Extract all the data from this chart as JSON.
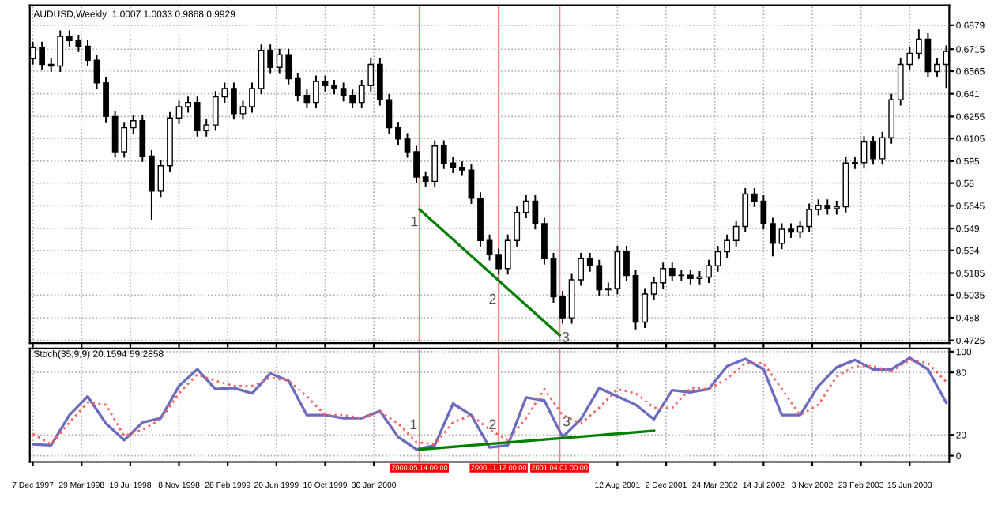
{
  "chart_data": [
    {
      "type": "candlestick",
      "title": "AUDUSD,Weekly  1.0007 1.0033 0.9868 0.9929",
      "color": "#000000",
      "x": [
        "1997-12-07",
        "1997-12-28",
        "1998-01-18",
        "1998-02-08",
        "1998-03-01",
        "1998-03-22",
        "1998-04-12",
        "1998-05-03",
        "1998-05-24",
        "1998-06-14",
        "1998-07-05",
        "1998-07-26",
        "1998-08-16",
        "1998-09-06",
        "1998-09-27",
        "1998-10-18",
        "1998-11-08",
        "1998-11-29",
        "1998-12-20",
        "1999-01-10",
        "1999-01-31",
        "1999-02-21",
        "1999-03-14",
        "1999-04-04",
        "1999-04-25",
        "1999-05-16",
        "1999-06-06",
        "1999-06-27",
        "1999-07-18",
        "1999-08-08",
        "1999-08-29",
        "1999-09-19",
        "1999-10-10",
        "1999-10-31",
        "1999-11-21",
        "1999-12-12",
        "2000-01-02",
        "2000-01-23",
        "2000-02-13",
        "2000-03-05",
        "2000-03-26",
        "2000-04-16",
        "2000-05-07",
        "2000-05-28",
        "2000-06-18",
        "2000-07-09",
        "2000-07-30",
        "2000-08-20",
        "2000-09-10",
        "2000-10-01",
        "2000-10-22",
        "2000-11-12",
        "2000-12-03",
        "2000-12-24",
        "2001-01-14",
        "2001-02-04",
        "2001-02-25",
        "2001-03-18",
        "2001-04-08",
        "2001-04-29",
        "2001-05-20",
        "2001-06-10",
        "2001-07-01",
        "2001-07-22",
        "2001-08-12",
        "2001-09-02",
        "2001-09-23",
        "2001-10-14",
        "2001-11-04",
        "2001-11-25",
        "2001-12-16",
        "2002-01-06",
        "2002-01-27",
        "2002-02-17",
        "2002-03-10",
        "2002-03-31",
        "2002-04-21",
        "2002-05-12",
        "2002-06-02",
        "2002-06-23",
        "2002-07-14",
        "2002-08-04",
        "2002-08-25",
        "2002-09-15",
        "2002-10-06",
        "2002-10-27",
        "2002-11-17",
        "2002-12-08",
        "2002-12-29",
        "2003-01-19",
        "2003-02-09",
        "2003-03-02",
        "2003-03-23",
        "2003-04-13",
        "2003-05-04",
        "2003-05-25",
        "2003-06-15",
        "2003-07-06",
        "2003-07-27",
        "2003-08-17",
        "2003-09-07"
      ],
      "ohlc": [
        [
          0.665,
          0.6766,
          0.661,
          0.6726
        ],
        [
          0.6726,
          0.6766,
          0.6571,
          0.6611
        ],
        [
          0.6611,
          0.6651,
          0.656,
          0.66
        ],
        [
          0.66,
          0.6843,
          0.656,
          0.6803
        ],
        [
          0.6803,
          0.6843,
          0.6734,
          0.6774
        ],
        [
          0.6774,
          0.6814,
          0.6696,
          0.6736
        ],
        [
          0.6736,
          0.6776,
          0.6599,
          0.6639
        ],
        [
          0.6639,
          0.6679,
          0.6445,
          0.6485
        ],
        [
          0.6485,
          0.6525,
          0.6215,
          0.6255
        ],
        [
          0.6255,
          0.6295,
          0.5974,
          0.6014
        ],
        [
          0.6014,
          0.6218,
          0.5974,
          0.6178
        ],
        [
          0.6178,
          0.6266,
          0.6138,
          0.6226
        ],
        [
          0.6226,
          0.6266,
          0.5945,
          0.5985
        ],
        [
          0.5985,
          0.6025,
          0.555,
          0.5745
        ],
        [
          0.5745,
          0.5958,
          0.5705,
          0.5918
        ],
        [
          0.5918,
          0.6285,
          0.5878,
          0.6245
        ],
        [
          0.6245,
          0.6362,
          0.6205,
          0.6322
        ],
        [
          0.6322,
          0.6391,
          0.6282,
          0.6351
        ],
        [
          0.6351,
          0.6391,
          0.6118,
          0.6158
        ],
        [
          0.6158,
          0.6237,
          0.6118,
          0.6197
        ],
        [
          0.6197,
          0.6429,
          0.6157,
          0.6389
        ],
        [
          0.6389,
          0.6487,
          0.6349,
          0.6447
        ],
        [
          0.6447,
          0.6487,
          0.6234,
          0.6274
        ],
        [
          0.6274,
          0.6362,
          0.6234,
          0.6322
        ],
        [
          0.6322,
          0.6487,
          0.6282,
          0.6447
        ],
        [
          0.6447,
          0.6747,
          0.6407,
          0.6707
        ],
        [
          0.6707,
          0.6747,
          0.6551,
          0.6591
        ],
        [
          0.6591,
          0.6718,
          0.6551,
          0.6678
        ],
        [
          0.6678,
          0.6718,
          0.6474,
          0.6514
        ],
        [
          0.6514,
          0.6554,
          0.6359,
          0.6399
        ],
        [
          0.6399,
          0.6439,
          0.6311,
          0.6351
        ],
        [
          0.6351,
          0.6535,
          0.6311,
          0.6495
        ],
        [
          0.6495,
          0.6535,
          0.6426,
          0.6466
        ],
        [
          0.6466,
          0.6506,
          0.6407,
          0.6447
        ],
        [
          0.6447,
          0.6487,
          0.6359,
          0.6399
        ],
        [
          0.6399,
          0.6439,
          0.6311,
          0.6351
        ],
        [
          0.6351,
          0.6506,
          0.6311,
          0.6466
        ],
        [
          0.6466,
          0.6651,
          0.6426,
          0.6611
        ],
        [
          0.6611,
          0.6651,
          0.633,
          0.637
        ],
        [
          0.637,
          0.641,
          0.6138,
          0.6178
        ],
        [
          0.6178,
          0.6218,
          0.6061,
          0.6101
        ],
        [
          0.6101,
          0.6141,
          0.5974,
          0.6014
        ],
        [
          0.6014,
          0.6054,
          0.5801,
          0.5841
        ],
        [
          0.5841,
          0.5881,
          0.5772,
          0.5812
        ],
        [
          0.5812,
          0.6093,
          0.5772,
          0.6053
        ],
        [
          0.6053,
          0.6093,
          0.5897,
          0.5937
        ],
        [
          0.5937,
          0.5977,
          0.5868,
          0.5908
        ],
        [
          0.5908,
          0.5948,
          0.5849,
          0.5889
        ],
        [
          0.5889,
          0.5929,
          0.5657,
          0.5697
        ],
        [
          0.5697,
          0.5737,
          0.5368,
          0.5408
        ],
        [
          0.5408,
          0.5448,
          0.5272,
          0.5312
        ],
        [
          0.5312,
          0.5352,
          0.5176,
          0.5216
        ],
        [
          0.5216,
          0.5448,
          0.5176,
          0.5408
        ],
        [
          0.5408,
          0.564,
          0.5368,
          0.56
        ],
        [
          0.56,
          0.5717,
          0.556,
          0.5677
        ],
        [
          0.5677,
          0.5717,
          0.5483,
          0.5523
        ],
        [
          0.5523,
          0.5563,
          0.5243,
          0.5283
        ],
        [
          0.5283,
          0.5323,
          0.4983,
          0.5023
        ],
        [
          0.5023,
          0.5063,
          0.4839,
          0.4879
        ],
        [
          0.4879,
          0.5179,
          0.4839,
          0.5139
        ],
        [
          0.5139,
          0.5323,
          0.5099,
          0.5283
        ],
        [
          0.5283,
          0.5323,
          0.5195,
          0.5235
        ],
        [
          0.5235,
          0.5275,
          0.5031,
          0.5071
        ],
        [
          0.5071,
          0.512,
          0.5031,
          0.508
        ],
        [
          0.508,
          0.5371,
          0.504,
          0.5331
        ],
        [
          0.5331,
          0.5371,
          0.5128,
          0.5168
        ],
        [
          0.5168,
          0.5208,
          0.48,
          0.485
        ],
        [
          0.485,
          0.5082,
          0.481,
          0.5042
        ],
        [
          0.5042,
          0.5159,
          0.5002,
          0.5119
        ],
        [
          0.5119,
          0.5256,
          0.5079,
          0.5216
        ],
        [
          0.5216,
          0.5256,
          0.5128,
          0.5168
        ],
        [
          0.5168,
          0.521,
          0.5128,
          0.517
        ],
        [
          0.517,
          0.521,
          0.5108,
          0.5148
        ],
        [
          0.5148,
          0.5198,
          0.5108,
          0.5158
        ],
        [
          0.5158,
          0.5275,
          0.5118,
          0.5235
        ],
        [
          0.5235,
          0.5371,
          0.5195,
          0.5331
        ],
        [
          0.5331,
          0.5448,
          0.5291,
          0.5408
        ],
        [
          0.5408,
          0.5544,
          0.5368,
          0.5504
        ],
        [
          0.5504,
          0.5765,
          0.5464,
          0.5725
        ],
        [
          0.5725,
          0.5765,
          0.5637,
          0.5677
        ],
        [
          0.5677,
          0.5717,
          0.5483,
          0.5523
        ],
        [
          0.5523,
          0.5563,
          0.53,
          0.5389
        ],
        [
          0.5389,
          0.5525,
          0.5349,
          0.5485
        ],
        [
          0.5485,
          0.5525,
          0.5426,
          0.5466
        ],
        [
          0.5466,
          0.5544,
          0.5426,
          0.5504
        ],
        [
          0.5504,
          0.566,
          0.5464,
          0.562
        ],
        [
          0.562,
          0.5689,
          0.558,
          0.5649
        ],
        [
          0.5649,
          0.5689,
          0.5585,
          0.5625
        ],
        [
          0.5625,
          0.5679,
          0.5585,
          0.5639
        ],
        [
          0.5639,
          0.5977,
          0.5599,
          0.5937
        ],
        [
          0.5937,
          0.598,
          0.5897,
          0.594
        ],
        [
          0.594,
          0.6121,
          0.59,
          0.6081
        ],
        [
          0.6081,
          0.6121,
          0.5926,
          0.5966
        ],
        [
          0.5966,
          0.615,
          0.5926,
          0.611
        ],
        [
          0.611,
          0.641,
          0.607,
          0.637
        ],
        [
          0.637,
          0.6651,
          0.633,
          0.6611
        ],
        [
          0.6611,
          0.6727,
          0.6571,
          0.6687
        ],
        [
          0.6687,
          0.685,
          0.6647,
          0.6784
        ],
        [
          0.6784,
          0.6824,
          0.6522,
          0.6562
        ],
        [
          0.6562,
          0.6651,
          0.6522,
          0.6611
        ],
        [
          0.6611,
          0.674,
          0.645,
          0.67
        ]
      ],
      "series": [
        {
          "type": "line",
          "color": "#008000",
          "x": [
            "2000-05-14",
            "2001-04-01"
          ],
          "values": [
            0.562,
            0.476
          ]
        }
      ],
      "xlim": [
        "1997-11-30",
        "2003-09-14"
      ],
      "ylim": [
        0.4706,
        0.7015
      ],
      "xticks": [
        {
          "value": "1997-12-07",
          "label": null
        },
        {
          "value": "1998-03-29",
          "label": null
        },
        {
          "value": "1998-07-19",
          "label": null
        },
        {
          "value": "1998-11-08",
          "label": null
        },
        {
          "value": "1999-02-28",
          "label": null
        },
        {
          "value": "1999-06-20",
          "label": null
        },
        {
          "value": "1999-10-10",
          "label": null
        },
        {
          "value": "2000-01-30",
          "label": null
        },
        {
          "value": "2001-08-12",
          "label": null
        },
        {
          "value": "2001-12-02",
          "label": null
        },
        {
          "value": "2002-03-24",
          "label": null
        },
        {
          "value": "2002-07-14",
          "label": null
        },
        {
          "value": "2002-11-03",
          "label": null
        },
        {
          "value": "2003-02-23",
          "label": null
        },
        {
          "value": "2003-06-15",
          "label": null
        }
      ],
      "yticks": [
        0.4725,
        0.488,
        0.5035,
        0.5185,
        0.534,
        0.549,
        0.5645,
        0.58,
        0.595,
        0.6105,
        0.6255,
        0.641,
        0.6565,
        0.6715,
        0.6879
      ],
      "tick_labels": "y",
      "grid": true,
      "ref_lines": [
        {
          "axis": "x",
          "value": "2000-05-14",
          "color": "#ff8080"
        },
        {
          "axis": "x",
          "value": "2000-11-12",
          "color": "#ff8080"
        },
        {
          "axis": "x",
          "value": "2001-04-01",
          "color": "#ff8080"
        }
      ],
      "annotations": [
        {
          "text": "1",
          "x": "2000-05-02",
          "y": 0.553
        },
        {
          "text": "2",
          "x": "2000-10-29",
          "y": 0.5
        },
        {
          "text": "3",
          "x": "2001-04-15",
          "y": 0.474
        }
      ]
    },
    {
      "type": "line",
      "title": "Stoch(35,9,9) 20.1594 59.2858",
      "x": [
        "1997-12-07",
        "1998-01-18",
        "1998-03-01",
        "1998-04-12",
        "1998-05-24",
        "1998-07-05",
        "1998-08-16",
        "1998-09-27",
        "1998-11-08",
        "1998-12-20",
        "1999-01-31",
        "1999-03-14",
        "1999-04-25",
        "1999-06-06",
        "1999-07-18",
        "1999-08-29",
        "1999-10-10",
        "1999-11-21",
        "2000-01-02",
        "2000-02-13",
        "2000-03-26",
        "2000-05-07",
        "2000-06-18",
        "2000-07-30",
        "2000-09-10",
        "2000-10-22",
        "2000-12-03",
        "2001-01-14",
        "2001-02-25",
        "2001-04-08",
        "2001-05-20",
        "2001-07-01",
        "2001-08-12",
        "2001-09-23",
        "2001-11-04",
        "2001-12-16",
        "2002-01-27",
        "2002-03-10",
        "2002-04-21",
        "2002-06-02",
        "2002-07-14",
        "2002-08-25",
        "2002-10-06",
        "2002-11-17",
        "2002-12-29",
        "2003-02-09",
        "2003-03-23",
        "2003-05-04",
        "2003-06-15",
        "2003-07-27",
        "2003-09-07"
      ],
      "series": [
        {
          "color": "#6b6bbf",
          "line_style": "solid",
          "values": [
            11,
            10,
            39,
            57,
            31,
            15,
            32,
            36,
            67,
            83,
            64,
            65,
            60,
            79,
            72,
            39,
            39,
            36,
            36,
            43,
            18,
            6,
            10,
            50,
            39,
            8,
            10,
            56,
            53,
            18,
            35,
            65,
            57,
            49,
            35,
            63,
            61,
            64,
            86,
            93,
            83,
            39,
            39,
            67,
            85,
            92,
            83,
            83,
            94,
            83,
            51
          ]
        },
        {
          "color": "#ff6060",
          "line_style": "dotted",
          "values": [
            21,
            11,
            32,
            51,
            49,
            19,
            25,
            35,
            60,
            78,
            72,
            67,
            67,
            75,
            72,
            57,
            39,
            39,
            36,
            42,
            31,
            13,
            11,
            32,
            39,
            25,
            15,
            36,
            64,
            39,
            31,
            46,
            64,
            60,
            46,
            46,
            65,
            64,
            74,
            89,
            89,
            64,
            39,
            49,
            76,
            86,
            86,
            81,
            92,
            89,
            71
          ]
        },
        {
          "type": "line",
          "color": "#008000",
          "line_style": "solid",
          "x": [
            "2000-05-14",
            "2001-11-04"
          ],
          "values": [
            6,
            24
          ]
        }
      ],
      "xlim": [
        "1997-11-30",
        "2003-09-14"
      ],
      "ylim": [
        -6,
        103
      ],
      "xticks": [
        {
          "value": "1997-12-07",
          "label": "7 Dec 1997"
        },
        {
          "value": "1998-03-29",
          "label": "29 Mar 1998"
        },
        {
          "value": "1998-07-19",
          "label": "19 Jul 1998"
        },
        {
          "value": "1998-11-08",
          "label": "8 Nov 1998"
        },
        {
          "value": "1999-02-28",
          "label": "28 Feb 1999"
        },
        {
          "value": "1999-06-20",
          "label": "20 Jun 1999"
        },
        {
          "value": "1999-10-10",
          "label": "10 Oct 1999"
        },
        {
          "value": "2000-01-30",
          "label": "30 Jan 2000"
        },
        {
          "value": "2001-08-12",
          "label": "12 Aug 2001"
        },
        {
          "value": "2001-12-02",
          "label": "2 Dec 2001"
        },
        {
          "value": "2002-03-24",
          "label": "24 Mar 2002"
        },
        {
          "value": "2002-07-14",
          "label": "14 Jul 2002"
        },
        {
          "value": "2002-11-03",
          "label": "3 Nov 2002"
        },
        {
          "value": "2003-02-23",
          "label": "23 Feb 2003"
        },
        {
          "value": "2003-06-15",
          "label": "15 Jun 2003"
        }
      ],
      "yticks": [
        0,
        20,
        80,
        100
      ],
      "grid": true,
      "ref_lines": [
        {
          "axis": "x",
          "value": "2000-05-14",
          "label": "2000.05.14 00:00",
          "color": "#ff8080"
        },
        {
          "axis": "x",
          "value": "2000-11-12",
          "label": "2000.11.12 00:00",
          "color": "#ff8080"
        },
        {
          "axis": "x",
          "value": "2001-04-01",
          "label": "2001.04.01 00:00",
          "color": "#ff8080"
        }
      ],
      "annotations": [
        {
          "text": "1",
          "x": "2000-04-30",
          "y": 29
        },
        {
          "text": "2",
          "x": "2000-10-29",
          "y": 29
        },
        {
          "text": "3",
          "x": "2001-04-17",
          "y": 32
        }
      ]
    }
  ]
}
